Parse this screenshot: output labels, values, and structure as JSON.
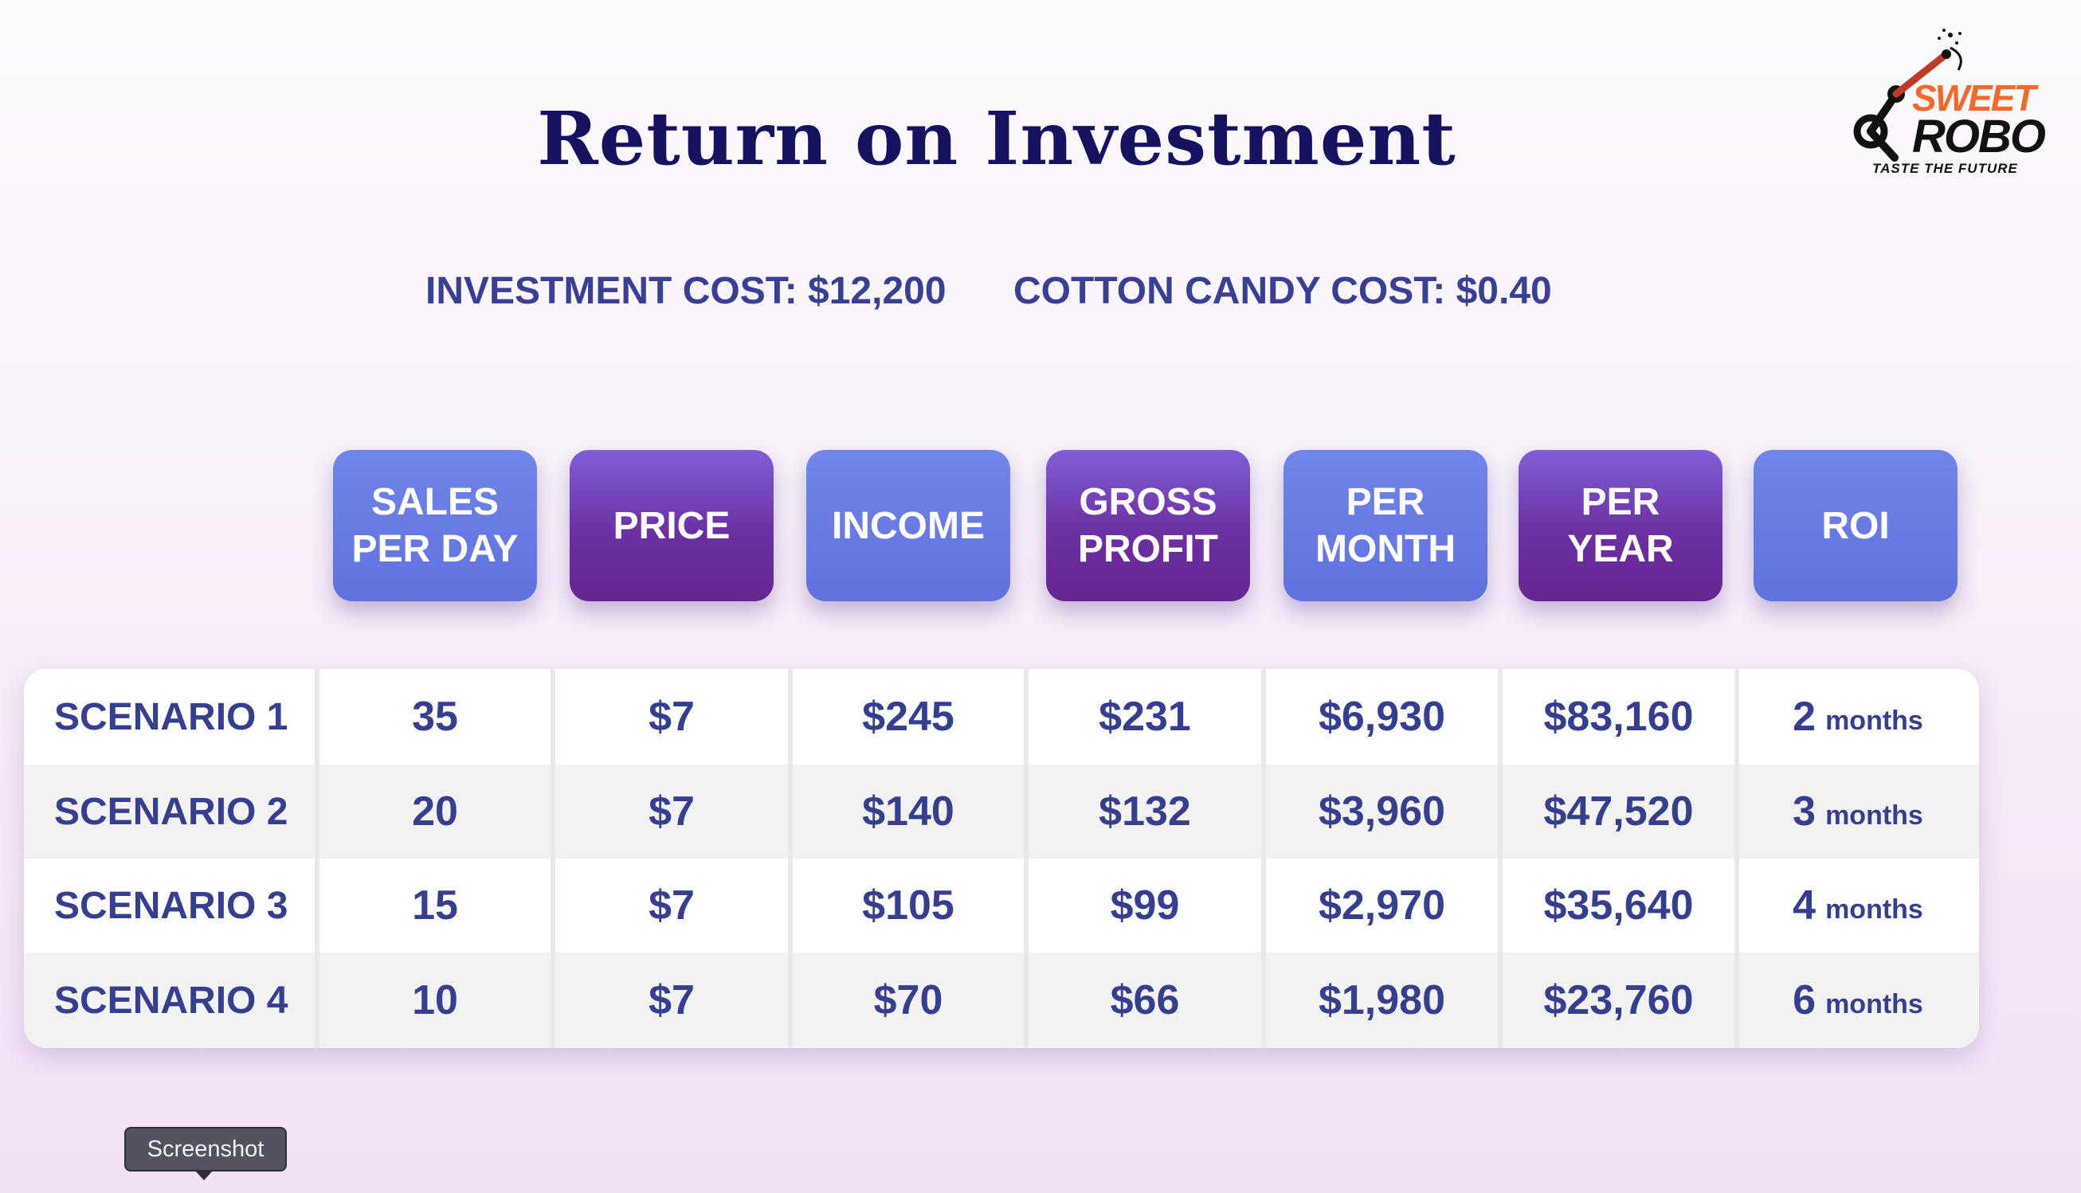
{
  "slide": {
    "title": "Return on Investment",
    "investment_cost": "INVESTMENT COST: $12,200",
    "cotton_candy_cost": "COTTON CANDY COST: $0.40"
  },
  "logo": {
    "line1": "SWEET",
    "line2": "ROBO",
    "tagline": "TASTE THE FUTURE",
    "colors": {
      "sweet": "#f26a2c",
      "robo": "#111111"
    }
  },
  "columns": [
    {
      "label_line1": "SALES",
      "label_line2": "PER DAY",
      "style": "blue"
    },
    {
      "label_line1": "PRICE",
      "label_line2": "",
      "style": "purple"
    },
    {
      "label_line1": "INCOME",
      "label_line2": "",
      "style": "blue"
    },
    {
      "label_line1": "GROSS",
      "label_line2": "PROFIT",
      "style": "purple"
    },
    {
      "label_line1": "PER",
      "label_line2": "MONTH",
      "style": "blue"
    },
    {
      "label_line1": "PER",
      "label_line2": "YEAR",
      "style": "purple"
    },
    {
      "label_line1": "ROI",
      "label_line2": "",
      "style": "blue"
    }
  ],
  "rows": [
    {
      "scenario": "SCENARIO 1",
      "sales_per_day": "35",
      "price": "$7",
      "income": "$245",
      "gross_profit": "$231",
      "per_month": "$6,930",
      "per_year": "$83,160",
      "roi_value": "2",
      "roi_unit": "months"
    },
    {
      "scenario": "SCENARIO 2",
      "sales_per_day": "20",
      "price": "$7",
      "income": "$140",
      "gross_profit": "$132",
      "per_month": "$3,960",
      "per_year": "$47,520",
      "roi_value": "3",
      "roi_unit": "months"
    },
    {
      "scenario": "SCENARIO 3",
      "sales_per_day": "15",
      "price": "$7",
      "income": "$105",
      "gross_profit": "$99",
      "per_month": "$2,970",
      "per_year": "$35,640",
      "roi_value": "4",
      "roi_unit": "months"
    },
    {
      "scenario": "SCENARIO 4",
      "sales_per_day": "10",
      "price": "$7",
      "income": "$70",
      "gross_profit": "$66",
      "per_month": "$1,980",
      "per_year": "$23,760",
      "roi_value": "6",
      "roi_unit": "months"
    }
  ],
  "tooltip": {
    "text": "Screenshot"
  },
  "colors": {
    "title": "#15135f",
    "text": "#363e8e",
    "header_blue": "#6a7de6",
    "header_purple": "#6c2fa2",
    "row_alt": "#f2f2f3"
  }
}
